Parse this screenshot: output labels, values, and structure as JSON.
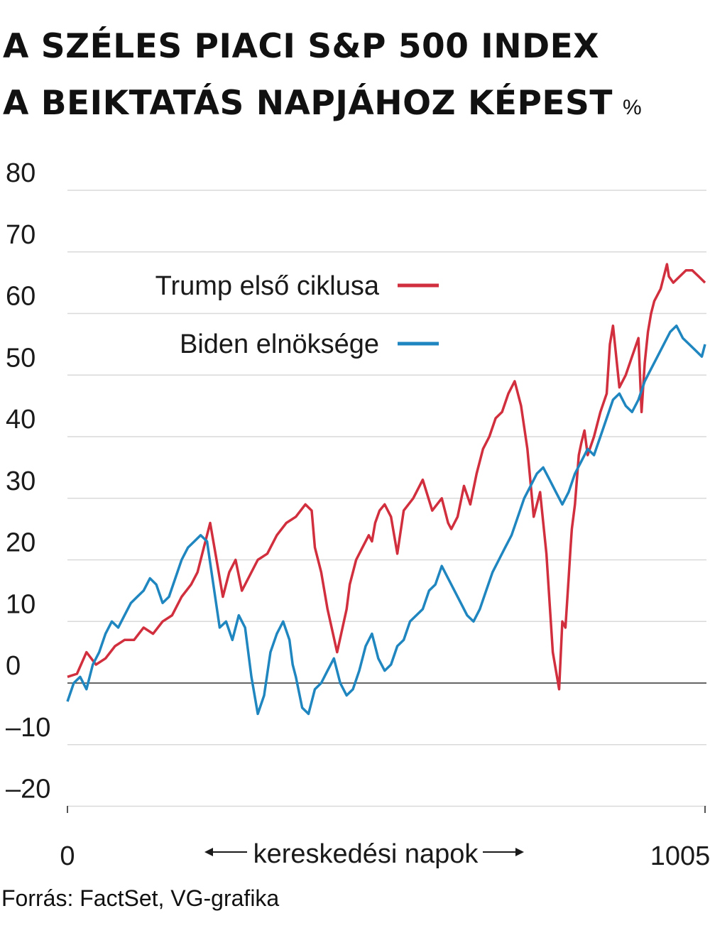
{
  "title": {
    "line1": "A SZÉLES PIACI S&P 500 INDEX",
    "line2": "A BEIKTATÁS NAPJÁHOZ KÉPEST",
    "unit": "%"
  },
  "source": "Forrás: FactSet, VG-grafika",
  "colors": {
    "trump": "#d12f3d",
    "biden": "#1f86bf",
    "grid": "#d9d9d9",
    "zero": "#333333",
    "text": "#1a1a1a"
  },
  "chart_data": {
    "type": "line",
    "xlabel": "kereskedési napok",
    "xticks": [
      "0",
      "1005"
    ],
    "xlim": [
      0,
      1005
    ],
    "ylim": [
      -20,
      80
    ],
    "yticks": [
      80,
      70,
      60,
      50,
      40,
      30,
      20,
      10,
      0,
      -10,
      -20
    ],
    "ytick_labels": [
      "80",
      "70",
      "60",
      "50",
      "40",
      "30",
      "20",
      "10",
      "0",
      "–10",
      "–20"
    ],
    "grid": true,
    "legend": "upper-middle",
    "series": [
      {
        "name": "Trump első ciklusa",
        "color": "#d12f3d",
        "x": [
          0,
          15,
          30,
          45,
          60,
          75,
          90,
          105,
          120,
          135,
          150,
          165,
          180,
          195,
          205,
          215,
          225,
          235,
          245,
          255,
          265,
          275,
          285,
          300,
          315,
          330,
          345,
          360,
          375,
          385,
          390,
          400,
          410,
          425,
          440,
          445,
          455,
          465,
          475,
          480,
          485,
          492,
          500,
          510,
          520,
          530,
          545,
          560,
          575,
          590,
          600,
          605,
          615,
          625,
          635,
          645,
          655,
          665,
          675,
          685,
          695,
          705,
          715,
          725,
          735,
          745,
          755,
          765,
          775,
          780,
          785,
          790,
          793,
          795,
          800,
          803,
          806,
          810,
          815,
          820,
          830,
          840,
          850,
          855,
          860,
          870,
          880,
          890,
          900,
          905,
          910,
          915,
          920,
          925,
          935,
          945,
          948,
          955,
          965,
          975,
          985,
          995,
          1005
        ],
        "y": [
          1,
          1.5,
          5,
          3,
          4,
          6,
          7,
          7,
          9,
          8,
          10,
          11,
          14,
          16,
          18,
          22,
          26,
          20,
          14,
          18,
          20,
          15,
          17,
          20,
          21,
          24,
          26,
          27,
          29,
          28,
          22,
          18,
          12,
          5,
          12,
          16,
          20,
          22,
          24,
          23,
          26,
          28,
          29,
          27,
          21,
          28,
          30,
          33,
          28,
          30,
          26,
          25,
          27,
          32,
          29,
          34,
          38,
          40,
          43,
          44,
          47,
          49,
          45,
          38,
          27,
          31,
          21,
          5,
          -1,
          10,
          9,
          17,
          22,
          25,
          29,
          33,
          37,
          39,
          41,
          37,
          40,
          44,
          47,
          55,
          58,
          48,
          50,
          53,
          56,
          44,
          52,
          57,
          60,
          62,
          64,
          68,
          66,
          65,
          66,
          67,
          67,
          66,
          65
        ]
      },
      {
        "name": "Biden elnöksége",
        "color": "#1f86bf",
        "x": [
          0,
          10,
          20,
          30,
          40,
          50,
          60,
          70,
          80,
          90,
          100,
          110,
          120,
          130,
          140,
          150,
          160,
          170,
          180,
          190,
          200,
          210,
          220,
          230,
          240,
          250,
          260,
          270,
          280,
          290,
          300,
          310,
          320,
          330,
          340,
          350,
          355,
          360,
          370,
          380,
          390,
          400,
          410,
          420,
          430,
          440,
          450,
          460,
          470,
          480,
          490,
          500,
          510,
          520,
          530,
          540,
          550,
          560,
          570,
          580,
          590,
          600,
          610,
          620,
          630,
          640,
          650,
          660,
          670,
          680,
          690,
          700,
          710,
          720,
          730,
          740,
          750,
          760,
          770,
          780,
          790,
          800,
          810,
          820,
          830,
          840,
          850,
          860,
          870,
          880,
          890,
          900,
          910,
          920,
          930,
          940,
          950,
          960,
          970,
          980,
          990,
          1000,
          1005
        ],
        "y": [
          -3,
          0,
          1,
          -1,
          3,
          5,
          8,
          10,
          9,
          11,
          13,
          14,
          15,
          17,
          16,
          13,
          14,
          17,
          20,
          22,
          23,
          24,
          23,
          16,
          9,
          10,
          7,
          11,
          9,
          1,
          -5,
          -2,
          5,
          8,
          10,
          7,
          3,
          1,
          -4,
          -5,
          -1,
          0,
          2,
          4,
          0,
          -2,
          -1,
          2,
          6,
          8,
          4,
          2,
          3,
          6,
          7,
          10,
          11,
          12,
          15,
          16,
          19,
          17,
          15,
          13,
          11,
          10,
          12,
          15,
          18,
          20,
          22,
          24,
          27,
          30,
          32,
          34,
          35,
          33,
          31,
          29,
          31,
          34,
          36,
          38,
          37,
          40,
          43,
          46,
          47,
          45,
          44,
          46,
          49,
          51,
          53,
          55,
          57,
          58,
          56,
          55,
          54,
          53,
          55
        ]
      }
    ]
  }
}
